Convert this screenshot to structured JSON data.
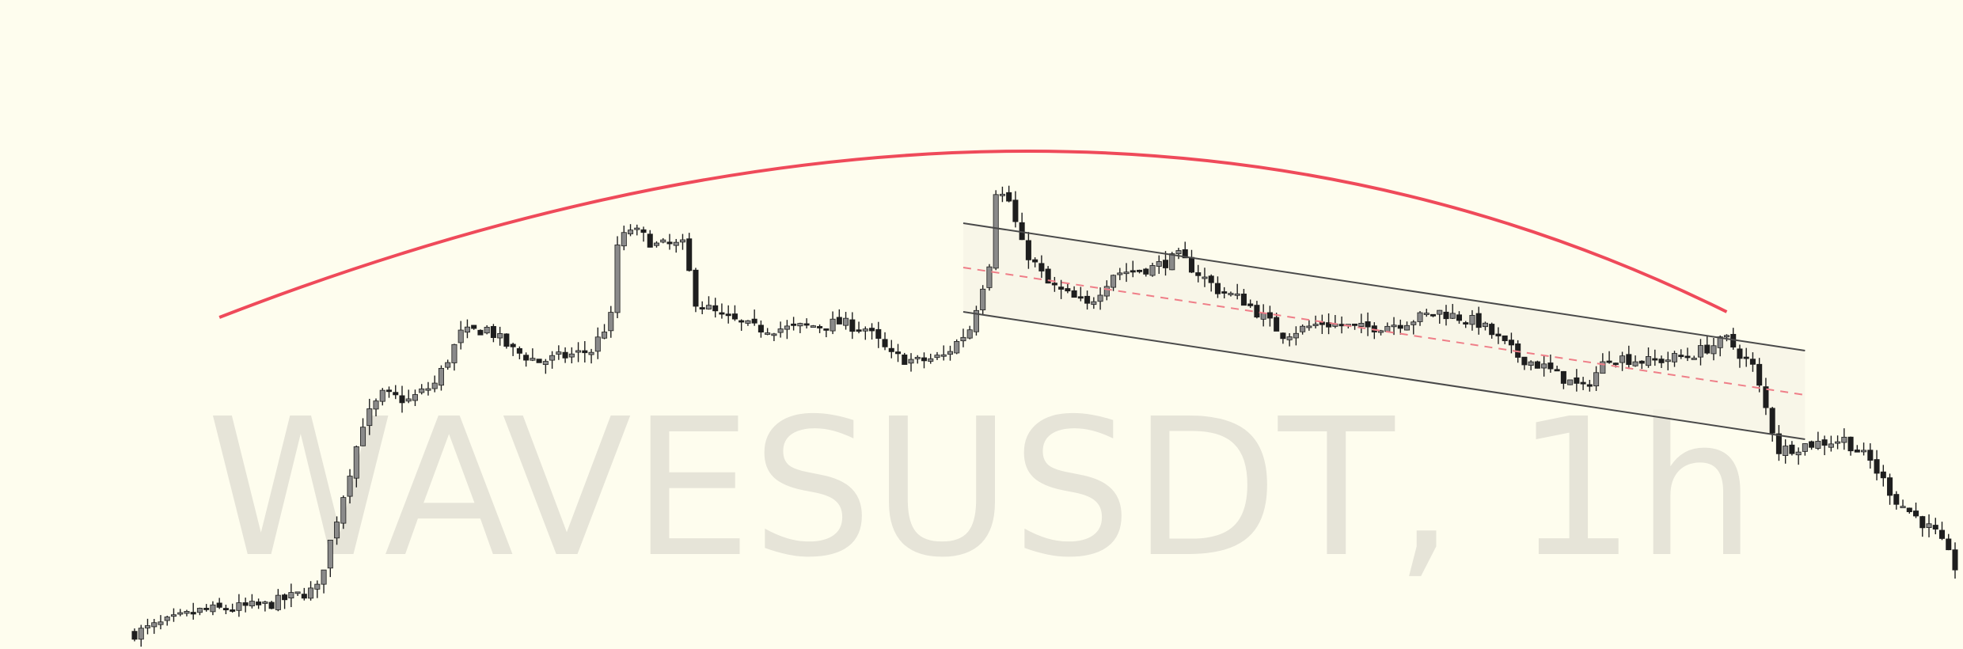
{
  "symbol_watermark": "WAVESUSDT, 1h",
  "colors": {
    "background": "#fefdee",
    "candle": "#1e1e1e",
    "arc": "#ef4a5a",
    "channel_line": "#4a4a4a",
    "channel_fill": "#f6f4e6",
    "midline": "#ef7e88",
    "watermark": "#e6e4d8"
  },
  "chart_data": {
    "type": "candlestick",
    "title": "",
    "xlabel": "",
    "ylabel": "",
    "ylim": [
      0,
      100
    ],
    "grid": false,
    "legend": "none",
    "candle_count": 280,
    "key_points": [
      {
        "index": 0,
        "value": 0
      },
      {
        "index": 10,
        "value": 4
      },
      {
        "index": 20,
        "value": 5
      },
      {
        "index": 28,
        "value": 8
      },
      {
        "index": 32,
        "value": 25
      },
      {
        "index": 35,
        "value": 38
      },
      {
        "index": 38,
        "value": 43
      },
      {
        "index": 42,
        "value": 42
      },
      {
        "index": 46,
        "value": 45
      },
      {
        "index": 50,
        "value": 54
      },
      {
        "index": 54,
        "value": 55
      },
      {
        "index": 58,
        "value": 51
      },
      {
        "index": 62,
        "value": 49
      },
      {
        "index": 66,
        "value": 50
      },
      {
        "index": 70,
        "value": 51
      },
      {
        "index": 73,
        "value": 57
      },
      {
        "index": 74,
        "value": 70
      },
      {
        "index": 76,
        "value": 73
      },
      {
        "index": 80,
        "value": 70
      },
      {
        "index": 84,
        "value": 70
      },
      {
        "index": 86,
        "value": 60
      },
      {
        "index": 90,
        "value": 57
      },
      {
        "index": 95,
        "value": 55
      },
      {
        "index": 100,
        "value": 55
      },
      {
        "index": 108,
        "value": 56
      },
      {
        "index": 112,
        "value": 55
      },
      {
        "index": 116,
        "value": 50
      },
      {
        "index": 120,
        "value": 49
      },
      {
        "index": 124,
        "value": 50
      },
      {
        "index": 128,
        "value": 55
      },
      {
        "index": 131,
        "value": 67
      },
      {
        "index": 132,
        "value": 80
      },
      {
        "index": 134,
        "value": 78
      },
      {
        "index": 136,
        "value": 70
      },
      {
        "index": 140,
        "value": 63
      },
      {
        "index": 146,
        "value": 59
      },
      {
        "index": 150,
        "value": 65
      },
      {
        "index": 156,
        "value": 66
      },
      {
        "index": 160,
        "value": 68
      },
      {
        "index": 166,
        "value": 62
      },
      {
        "index": 170,
        "value": 60
      },
      {
        "index": 176,
        "value": 54
      },
      {
        "index": 182,
        "value": 56
      },
      {
        "index": 188,
        "value": 55
      },
      {
        "index": 194,
        "value": 56
      },
      {
        "index": 200,
        "value": 58
      },
      {
        "index": 206,
        "value": 56
      },
      {
        "index": 212,
        "value": 50
      },
      {
        "index": 216,
        "value": 48
      },
      {
        "index": 222,
        "value": 44
      },
      {
        "index": 226,
        "value": 50
      },
      {
        "index": 232,
        "value": 49
      },
      {
        "index": 238,
        "value": 50
      },
      {
        "index": 244,
        "value": 53
      },
      {
        "index": 248,
        "value": 48
      },
      {
        "index": 252,
        "value": 33
      },
      {
        "index": 256,
        "value": 34
      },
      {
        "index": 262,
        "value": 35
      },
      {
        "index": 266,
        "value": 31
      },
      {
        "index": 270,
        "value": 24
      },
      {
        "index": 276,
        "value": 18
      },
      {
        "index": 279,
        "value": 12
      }
    ],
    "drawings": {
      "rounding_top_arc": {
        "from": {
          "index": 13,
          "value": 57
        },
        "peak": {
          "index": 136,
          "value": 87
        },
        "to": {
          "index": 244,
          "value": 58
        }
      },
      "descending_channel": {
        "upper": {
          "from": {
            "index": 127,
            "value": 74
          },
          "to": {
            "index": 256,
            "value": 51
          }
        },
        "lower": {
          "from": {
            "index": 127,
            "value": 58
          },
          "to": {
            "index": 256,
            "value": 35
          }
        },
        "midline": {
          "from": {
            "index": 127,
            "value": 66
          },
          "to": {
            "index": 256,
            "value": 43
          }
        }
      }
    }
  }
}
